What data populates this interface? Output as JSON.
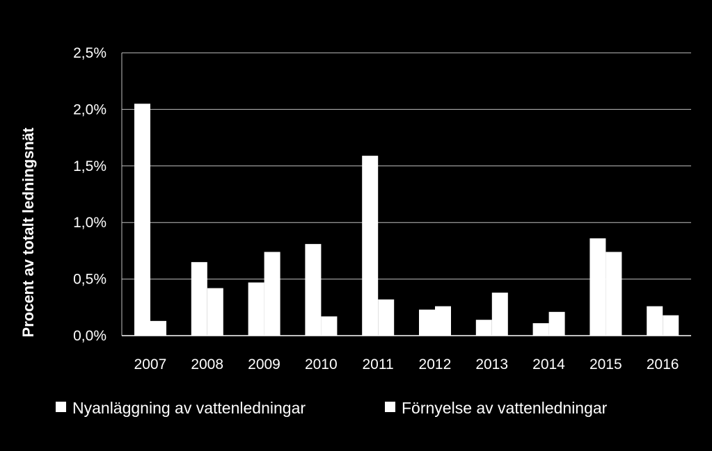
{
  "chart_data": {
    "type": "bar",
    "title": "",
    "xlabel": "",
    "ylabel": "Procent av totalt ledningsnät",
    "ylim": [
      0,
      0.025
    ],
    "y_ticks": [
      "0,0%",
      "0,5%",
      "1,0%",
      "1,5%",
      "2,0%",
      "2,5%"
    ],
    "y_tick_values": [
      0,
      0.005,
      0.01,
      0.015,
      0.02,
      0.025
    ],
    "grid": true,
    "legend_position": "bottom",
    "categories": [
      "2007",
      "2008",
      "2009",
      "2010",
      "2011",
      "2012",
      "2013",
      "2014",
      "2015",
      "2016"
    ],
    "series": [
      {
        "name": "Nyanläggning av vattenledningar",
        "color": "#ffffff",
        "values": [
          0.0205,
          0.0065,
          0.0047,
          0.0081,
          0.0159,
          0.0023,
          0.0014,
          0.0011,
          0.0086,
          0.0026
        ]
      },
      {
        "name": "Förnyelse av vattenledningar",
        "color": "#ffffff",
        "values": [
          0.0013,
          0.0042,
          0.0074,
          0.0017,
          0.0032,
          0.0026,
          0.0038,
          0.0021,
          0.0074,
          0.0018
        ]
      }
    ]
  }
}
